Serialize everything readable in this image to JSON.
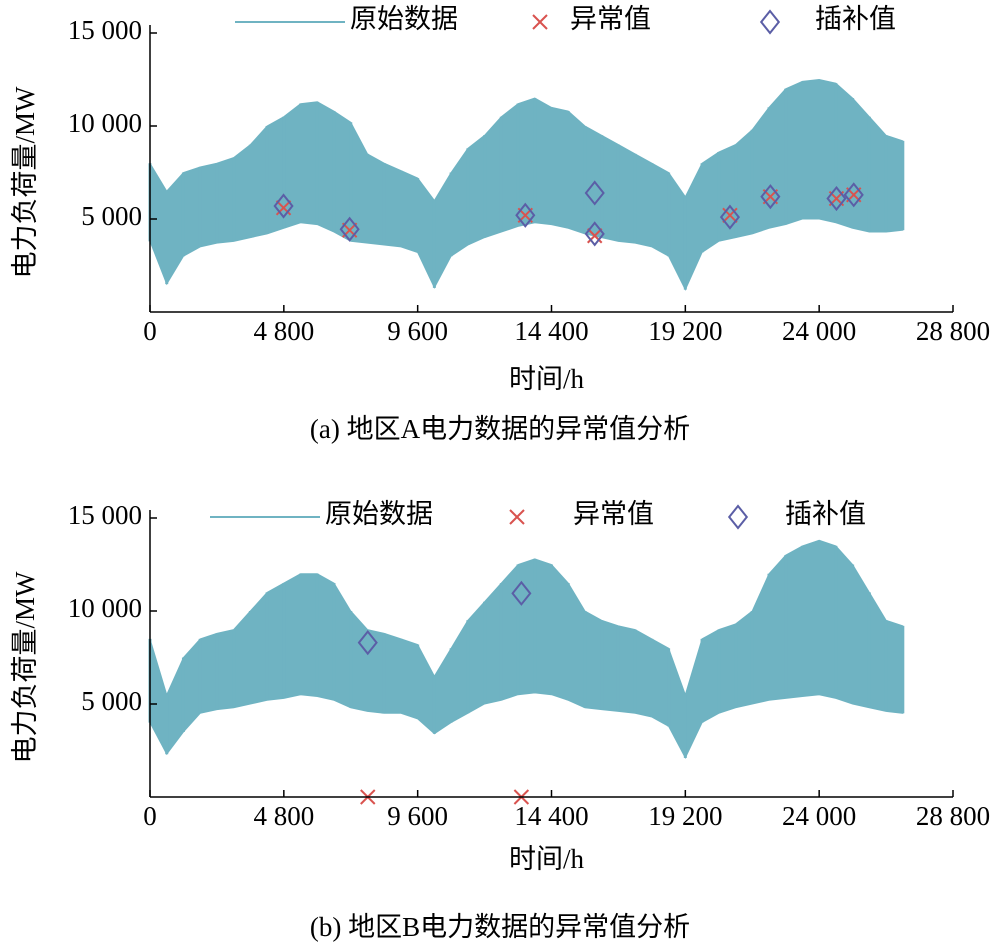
{
  "chart_data": [
    {
      "type": "line",
      "caption": "(a) 地区A电力数据的异常值分析",
      "x_label": "时间/h",
      "y_label": "电力负荷量/MW",
      "xlim": [
        0,
        28800
      ],
      "ylim": [
        0,
        15000
      ],
      "xticks": [
        0,
        {
          "value": 4800,
          "label": "4 800"
        },
        {
          "value": 9600,
          "label": "9 600"
        },
        {
          "value": 14400,
          "label": "14 400"
        },
        {
          "value": 19200,
          "label": "19 200"
        },
        {
          "value": 24000,
          "label": "24 000"
        },
        {
          "value": 28800,
          "label": "28 800"
        }
      ],
      "yticks": [
        {
          "value": 5000,
          "label": "5 000"
        },
        {
          "value": 10000,
          "label": "10 000"
        },
        {
          "value": 15000,
          "label": "15 000"
        }
      ],
      "legend": "upper center",
      "series": [
        {
          "name": "原始数据",
          "color": "#6fb3c2",
          "marker": "band",
          "x": [
            0,
            600,
            1200,
            1800,
            2400,
            3000,
            3600,
            4200,
            4800,
            5400,
            6000,
            6600,
            7200,
            7800,
            8400,
            9000,
            9600,
            10200,
            10800,
            11400,
            12000,
            12600,
            13200,
            13800,
            14400,
            15000,
            15600,
            16200,
            16800,
            17400,
            18000,
            18600,
            19200,
            19800,
            20400,
            21000,
            21600,
            22200,
            22800,
            23400,
            24000,
            24600,
            25200,
            25800,
            26400,
            27000
          ],
          "high": [
            8000,
            6500,
            7500,
            7800,
            8000,
            8300,
            9000,
            10000,
            10500,
            11200,
            11300,
            10800,
            10200,
            8500,
            8000,
            7600,
            7200,
            6000,
            7500,
            8800,
            9500,
            10500,
            11200,
            11500,
            11000,
            10800,
            10000,
            9500,
            9000,
            8500,
            8000,
            7500,
            6200,
            8000,
            8600,
            9000,
            9800,
            11000,
            12000,
            12400,
            12500,
            12300,
            11500,
            10500,
            9500,
            9200
          ],
          "low": [
            3800,
            1500,
            3000,
            3500,
            3700,
            3800,
            4000,
            4200,
            4500,
            4800,
            4700,
            4300,
            3800,
            3700,
            3600,
            3500,
            3200,
            1300,
            3000,
            3600,
            4000,
            4300,
            4600,
            4800,
            4700,
            4500,
            4200,
            4000,
            3800,
            3700,
            3500,
            3000,
            1200,
            3200,
            3800,
            4000,
            4200,
            4500,
            4700,
            5000,
            5000,
            4800,
            4500,
            4300,
            4300,
            4400
          ]
        },
        {
          "name": "异常值",
          "color": "#d9534f",
          "marker": "x",
          "x": [
            4790,
            7160,
            13460,
            15950,
            20800,
            22250,
            24620,
            25240
          ],
          "values": [
            5600,
            4400,
            5200,
            4100,
            5200,
            6200,
            6100,
            6300
          ]
        },
        {
          "name": "插补值",
          "color": "#5b5ea6",
          "marker": "diamond",
          "x": [
            4790,
            7160,
            13460,
            15950,
            15950,
            20800,
            22250,
            24620,
            25240
          ],
          "values": [
            5700,
            4450,
            5200,
            4200,
            6400,
            5100,
            6200,
            6100,
            6300
          ]
        }
      ]
    },
    {
      "type": "line",
      "caption": "(b) 地区B电力数据的异常值分析",
      "x_label": "时间/h",
      "y_label": "电力负荷量/MW",
      "xlim": [
        0,
        28800
      ],
      "ylim": [
        0,
        15000
      ],
      "xticks": [
        0,
        {
          "value": 4800,
          "label": "4 800"
        },
        {
          "value": 9600,
          "label": "9 600"
        },
        {
          "value": 14400,
          "label": "14 400"
        },
        {
          "value": 19200,
          "label": "19 200"
        },
        {
          "value": 24000,
          "label": "24 000"
        },
        {
          "value": 28800,
          "label": "28 800"
        }
      ],
      "yticks": [
        {
          "value": 5000,
          "label": "5 000"
        },
        {
          "value": 10000,
          "label": "10 000"
        },
        {
          "value": 15000,
          "label": "15 000"
        }
      ],
      "legend": "upper center",
      "series": [
        {
          "name": "原始数据",
          "color": "#6fb3c2",
          "marker": "band",
          "x": [
            0,
            600,
            1200,
            1800,
            2400,
            3000,
            3600,
            4200,
            4800,
            5400,
            6000,
            6600,
            7200,
            7800,
            8400,
            9000,
            9600,
            10200,
            10800,
            11400,
            12000,
            12600,
            13200,
            13800,
            14400,
            15000,
            15600,
            16200,
            16800,
            17400,
            18000,
            18600,
            19200,
            19800,
            20400,
            21000,
            21600,
            22200,
            22800,
            23400,
            24000,
            24600,
            25200,
            25800,
            26400,
            27000
          ],
          "high": [
            8500,
            5500,
            7500,
            8500,
            8800,
            9000,
            10000,
            11000,
            11500,
            12000,
            12000,
            11500,
            10000,
            9000,
            8800,
            8500,
            8200,
            6500,
            8000,
            9500,
            10500,
            11500,
            12500,
            12800,
            12500,
            11500,
            10000,
            9500,
            9200,
            9000,
            8500,
            8000,
            5500,
            8500,
            9000,
            9300,
            10000,
            12000,
            13000,
            13500,
            13800,
            13500,
            12500,
            11000,
            9500,
            9200
          ],
          "low": [
            4000,
            2300,
            3500,
            4500,
            4700,
            4800,
            5000,
            5200,
            5300,
            5500,
            5400,
            5200,
            4800,
            4600,
            4500,
            4500,
            4200,
            3400,
            4000,
            4500,
            5000,
            5200,
            5500,
            5600,
            5500,
            5200,
            4800,
            4700,
            4600,
            4500,
            4300,
            3800,
            2100,
            4000,
            4500,
            4800,
            5000,
            5200,
            5300,
            5400,
            5500,
            5300,
            5000,
            4800,
            4600,
            4500
          ]
        },
        {
          "name": "异常值",
          "color": "#d9534f",
          "marker": "x",
          "x": [
            7810,
            13320
          ],
          "values": [
            0,
            0
          ]
        },
        {
          "name": "插补值",
          "color": "#5b5ea6",
          "marker": "diamond",
          "x": [
            7810,
            13320
          ],
          "values": [
            8300,
            10950
          ]
        }
      ]
    }
  ]
}
